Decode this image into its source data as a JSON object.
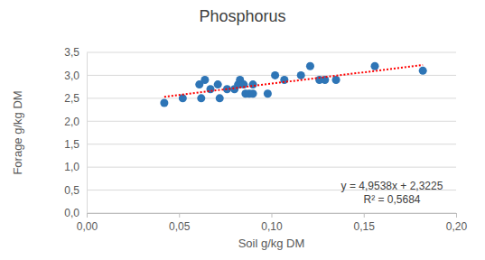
{
  "chart_data": {
    "type": "scatter",
    "title": "Phosphorus",
    "x_label": "Soil g/kg DM",
    "y_label": "Forage g/kg DM",
    "x": [
      0.042,
      0.052,
      0.061,
      0.062,
      0.064,
      0.067,
      0.071,
      0.072,
      0.076,
      0.08,
      0.082,
      0.083,
      0.085,
      0.086,
      0.088,
      0.09,
      0.09,
      0.098,
      0.102,
      0.107,
      0.116,
      0.121,
      0.126,
      0.129,
      0.135,
      0.156,
      0.182
    ],
    "values": [
      2.4,
      2.5,
      2.8,
      2.5,
      2.9,
      2.7,
      2.8,
      2.5,
      2.7,
      2.7,
      2.8,
      2.9,
      2.8,
      2.6,
      2.6,
      2.6,
      2.8,
      2.6,
      3.0,
      2.9,
      3.0,
      3.2,
      2.9,
      2.9,
      2.9,
      3.2,
      3.1
    ],
    "color": "#2e75b6",
    "marker": "circle",
    "trendline": {
      "x": [
        0.042,
        0.182
      ],
      "values": [
        2.533,
        3.224
      ],
      "color": "#ff0000",
      "line_style": "dotted"
    },
    "annotations": [
      "y = 4,9538x + 2,3225",
      "R² = 0,5684"
    ],
    "xlim": [
      0,
      0.2
    ],
    "xticks": [
      {
        "value": 0,
        "label": "0,00"
      },
      {
        "value": 0.05,
        "label": "0,05"
      },
      {
        "value": 0.1,
        "label": "0,10"
      },
      {
        "value": 0.15,
        "label": "0,15"
      },
      {
        "value": 0.2,
        "label": "0,20"
      }
    ],
    "ylim": [
      0,
      3.5
    ],
    "yticks": [
      {
        "value": 0,
        "label": "0,0"
      },
      {
        "value": 0.5,
        "label": "0,5"
      },
      {
        "value": 1,
        "label": "1,0"
      },
      {
        "value": 1.5,
        "label": "1,5"
      },
      {
        "value": 2,
        "label": "2,0"
      },
      {
        "value": 2.5,
        "label": "2,5"
      },
      {
        "value": 3,
        "label": "3,0"
      },
      {
        "value": 3.5,
        "label": "3,5"
      }
    ],
    "grid": true
  }
}
